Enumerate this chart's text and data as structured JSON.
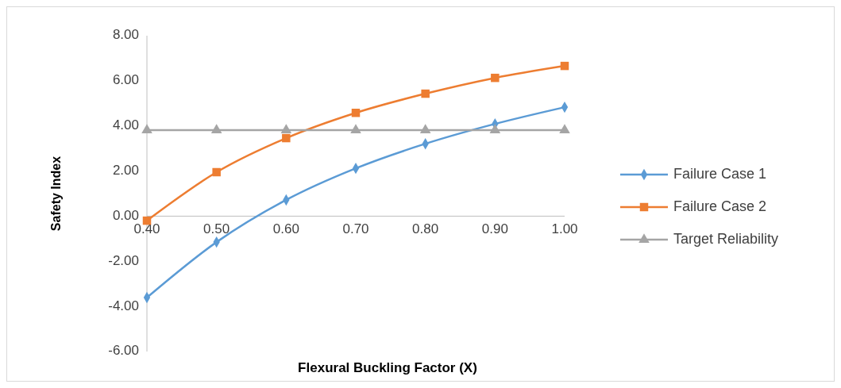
{
  "chart_data": {
    "type": "line",
    "xlabel": "Flexural Buckling Factor (X)",
    "ylabel": "Safety Index",
    "x": [
      0.4,
      0.5,
      0.6,
      0.7,
      0.8,
      0.9,
      1.0
    ],
    "xlim": [
      0.4,
      1.0
    ],
    "xticks": [
      {
        "value": 0.4,
        "label": "0.40"
      },
      {
        "value": 0.5,
        "label": "0.50"
      },
      {
        "value": 0.6,
        "label": "0.60"
      },
      {
        "value": 0.7,
        "label": "0.70"
      },
      {
        "value": 0.8,
        "label": "0.80"
      },
      {
        "value": 0.9,
        "label": "0.90"
      },
      {
        "value": 1.0,
        "label": "1.00"
      }
    ],
    "ylim": [
      -6,
      8
    ],
    "yticks": [
      {
        "value": -6,
        "label": "-6.00"
      },
      {
        "value": -4,
        "label": "-4.00"
      },
      {
        "value": -2,
        "label": "-2.00"
      },
      {
        "value": 0,
        "label": "0.00"
      },
      {
        "value": 2,
        "label": "2.00"
      },
      {
        "value": 4,
        "label": "4.00"
      },
      {
        "value": 6,
        "label": "6.00"
      },
      {
        "value": 8,
        "label": "8.00"
      }
    ],
    "series": [
      {
        "name": "Failure Case 1",
        "color": "#5b9bd5",
        "marker": "diamond",
        "values": [
          -3.61,
          -1.15,
          0.72,
          2.12,
          3.21,
          4.09,
          4.83
        ]
      },
      {
        "name": "Failure Case 2",
        "color": "#ed7d31",
        "marker": "square",
        "values": [
          -0.2,
          1.95,
          3.46,
          4.58,
          5.43,
          6.13,
          6.66
        ]
      },
      {
        "name": "Target Reliability",
        "color": "#a5a5a5",
        "marker": "triangle",
        "values": [
          3.81,
          3.81,
          3.81,
          3.81,
          3.81,
          3.81,
          3.81
        ]
      }
    ],
    "grid": false,
    "legend": "right"
  }
}
